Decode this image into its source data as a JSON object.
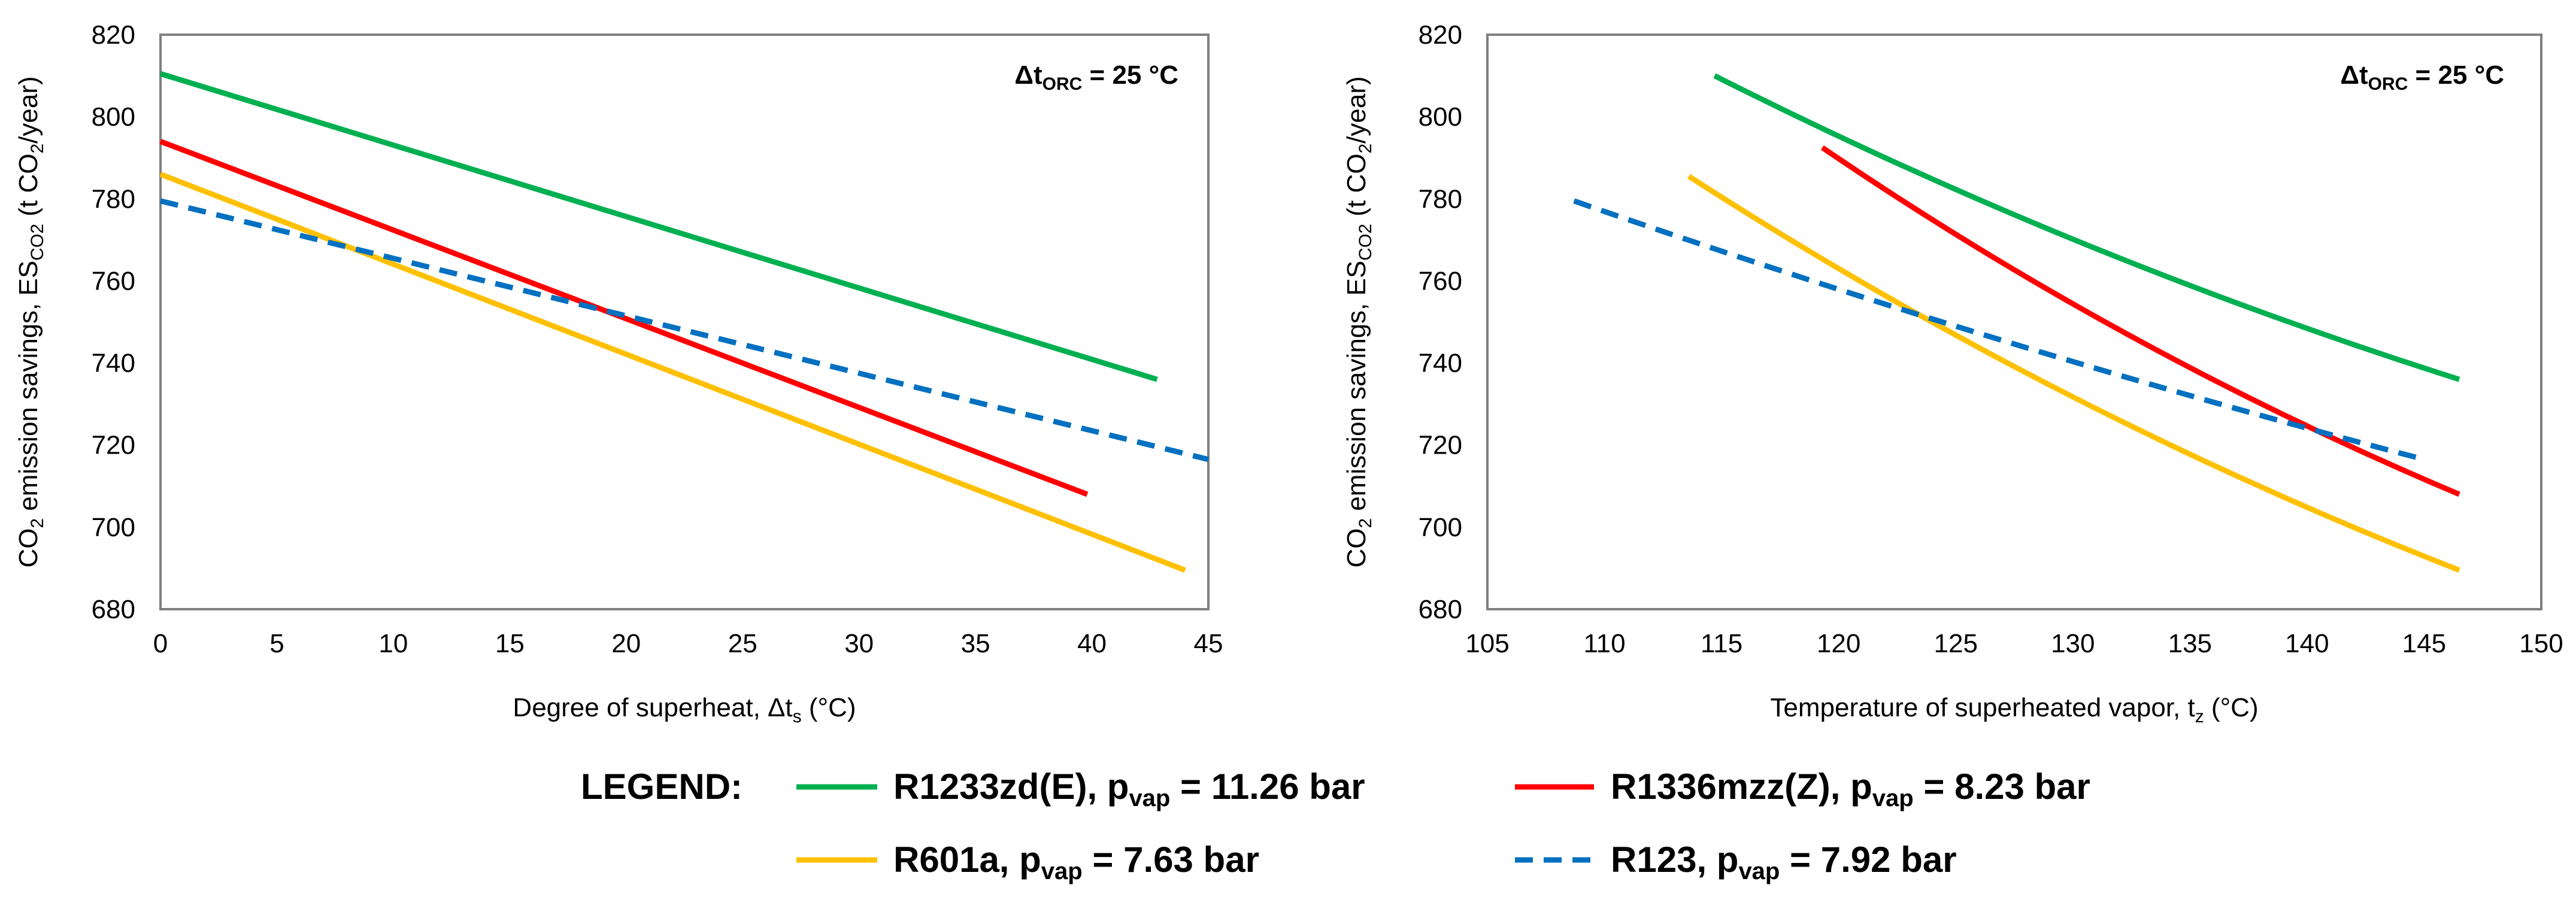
{
  "chart_data": [
    {
      "type": "line",
      "title": "",
      "annotation": {
        "main": "Δt",
        "sub": "ORC",
        "rest": " = 25 °C"
      },
      "xlabel": {
        "pre": "Degree of superheat, Δt",
        "sub": "s",
        "post": " (°C)"
      },
      "ylabel": {
        "pre": "CO",
        "sub1": "2",
        "mid": " emission savings, ES",
        "sub2": "CO2",
        "post": " (t CO",
        "sub3": "2",
        "end": "/year)"
      },
      "xlim": [
        0,
        45
      ],
      "ylim": [
        680,
        820
      ],
      "xticks": [
        0,
        5,
        10,
        15,
        20,
        25,
        30,
        35,
        40,
        45
      ],
      "yticks": [
        680,
        700,
        720,
        740,
        760,
        780,
        800,
        820
      ],
      "series": [
        {
          "name": "R1233zd(E)",
          "color": "#00b050",
          "dash": false,
          "x": [
            0,
            42.8
          ],
          "y": [
            810.5,
            736
          ]
        },
        {
          "name": "R1336mzz(Z)",
          "color": "#ff0000",
          "dash": false,
          "x": [
            0,
            39.8
          ],
          "y": [
            794,
            708
          ]
        },
        {
          "name": "R601a",
          "color": "#ffc000",
          "dash": false,
          "x": [
            0,
            44
          ],
          "y": [
            786,
            689.5
          ]
        },
        {
          "name": "R123",
          "color": "#0070c0",
          "dash": true,
          "x": [
            0,
            45
          ],
          "y": [
            779.5,
            716.5
          ]
        }
      ]
    },
    {
      "type": "line",
      "title": "",
      "annotation": {
        "main": "Δt",
        "sub": "ORC",
        "rest": " = 25 °C"
      },
      "xlabel": {
        "pre": "Temperature of superheated vapor, t",
        "sub": "z",
        "post": " (°C)"
      },
      "ylabel": {
        "pre": "CO",
        "sub1": "2",
        "mid": " emission savings, ES",
        "sub2": "CO2",
        "post": " (t CO",
        "sub3": "2",
        "end": "/year)"
      },
      "xlim": [
        105,
        150
      ],
      "ylim": [
        680,
        820
      ],
      "xticks": [
        105,
        110,
        115,
        120,
        125,
        130,
        135,
        140,
        145,
        150
      ],
      "yticks": [
        680,
        700,
        720,
        740,
        760,
        780,
        800,
        820
      ],
      "series": [
        {
          "name": "R1233zd(E)",
          "color": "#00b050",
          "dash": false,
          "x": [
            114.7,
            146.5
          ],
          "y": [
            810,
            736
          ],
          "curve": 0.04
        },
        {
          "name": "R1336mzz(Z)",
          "color": "#ff0000",
          "dash": false,
          "x": [
            119.3,
            146.5
          ],
          "y": [
            792.5,
            708
          ],
          "curve": 0.05
        },
        {
          "name": "R601a",
          "color": "#ffc000",
          "dash": false,
          "x": [
            113.6,
            146.5
          ],
          "y": [
            785.5,
            689.5
          ],
          "curve": 0.05
        },
        {
          "name": "R123",
          "color": "#0070c0",
          "dash": true,
          "x": [
            108.7,
            145
          ],
          "y": [
            779.5,
            716.5
          ],
          "curve": 0.02
        }
      ]
    }
  ],
  "legend": {
    "title": "LEGEND:",
    "items": [
      {
        "name": "R1233zd(E)",
        "pre": "R1233zd(E), p",
        "sub": "vap",
        "post": " = 11.26 bar",
        "color": "#00b050",
        "dash": false
      },
      {
        "name": "R1336mzz(Z)",
        "pre": "R1336mzz(Z), p",
        "sub": "vap",
        "post": " = 8.23 bar",
        "color": "#ff0000",
        "dash": false
      },
      {
        "name": "R601a",
        "pre": "R601a, p",
        "sub": "vap",
        "post": " = 7.63 bar",
        "color": "#ffc000",
        "dash": false
      },
      {
        "name": "R123",
        "pre": "R123, p",
        "sub": "vap",
        "post": " = 7.92 bar",
        "color": "#0070c0",
        "dash": true
      }
    ]
  }
}
